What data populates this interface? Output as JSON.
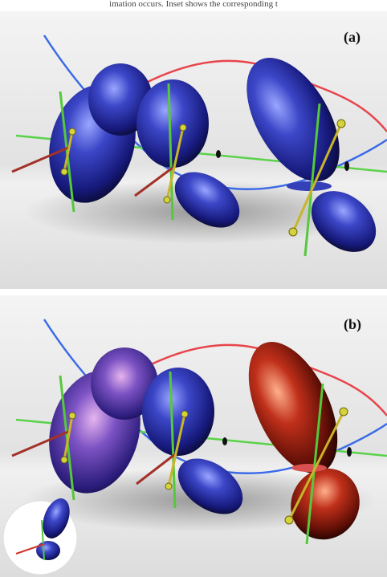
{
  "caption_fragment": "imation occurs. Inset shows the corresponding t",
  "panels": [
    {
      "label": "(a)"
    },
    {
      "label": "(b)"
    }
  ]
}
